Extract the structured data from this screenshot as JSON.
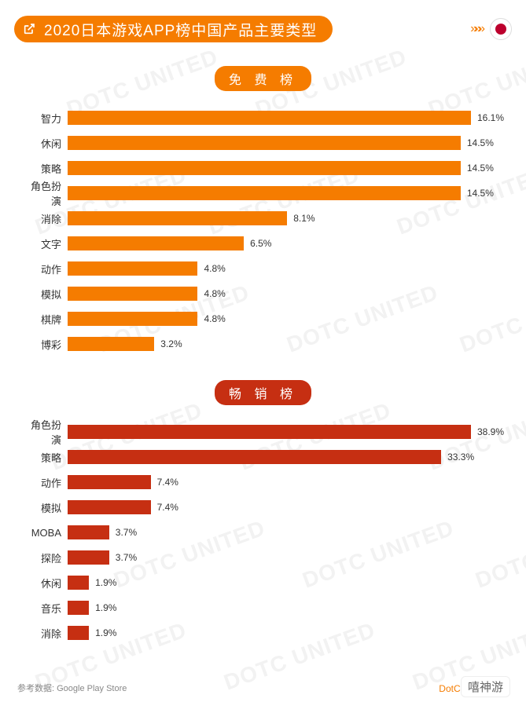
{
  "header": {
    "title": "2020日本游戏APP榜中国产品主要类型",
    "pill_bg": "#f57c00",
    "pill_text_color": "#ffffff",
    "flag_bg": "#ffffff",
    "flag_dot": "#bc002d",
    "arrow_color": "#f57c00"
  },
  "watermark_text": "DOTC UNITED",
  "watermark_color": "#f2f2f2",
  "chart_free": {
    "type": "bar",
    "section_label": "免 费 榜",
    "pill_bg": "#f57c00",
    "bar_color": "#f57c00",
    "max_value": 16.1,
    "label_fontsize": 13,
    "value_fontsize": 12,
    "value_suffix": "%",
    "items": [
      {
        "label": "智力",
        "value": 16.1
      },
      {
        "label": "休闲",
        "value": 14.5
      },
      {
        "label": "策略",
        "value": 14.5
      },
      {
        "label": "角色扮演",
        "value": 14.5
      },
      {
        "label": "消除",
        "value": 8.1
      },
      {
        "label": "文字",
        "value": 6.5
      },
      {
        "label": "动作",
        "value": 4.8
      },
      {
        "label": "模拟",
        "value": 4.8
      },
      {
        "label": "棋牌",
        "value": 4.8
      },
      {
        "label": "博彩",
        "value": 3.2
      }
    ]
  },
  "chart_gross": {
    "type": "bar",
    "section_label": "畅 销 榜",
    "pill_bg": "#c62f12",
    "bar_color": "#c62f12",
    "max_value": 38.9,
    "label_fontsize": 13,
    "value_fontsize": 12,
    "value_suffix": "%",
    "items": [
      {
        "label": "角色扮演",
        "value": 38.9
      },
      {
        "label": "策略",
        "value": 33.3
      },
      {
        "label": "动作",
        "value": 7.4
      },
      {
        "label": "模拟",
        "value": 7.4
      },
      {
        "label": "MOBA",
        "value": 3.7
      },
      {
        "label": "探险",
        "value": 3.7
      },
      {
        "label": "休闲",
        "value": 1.9
      },
      {
        "label": "音乐",
        "value": 1.9
      },
      {
        "label": "消除",
        "value": 1.9
      }
    ]
  },
  "footer": {
    "source_label": "参考数据: Google Play Store",
    "brand": "DotC United Gro",
    "site_badge": "嘻神游"
  }
}
